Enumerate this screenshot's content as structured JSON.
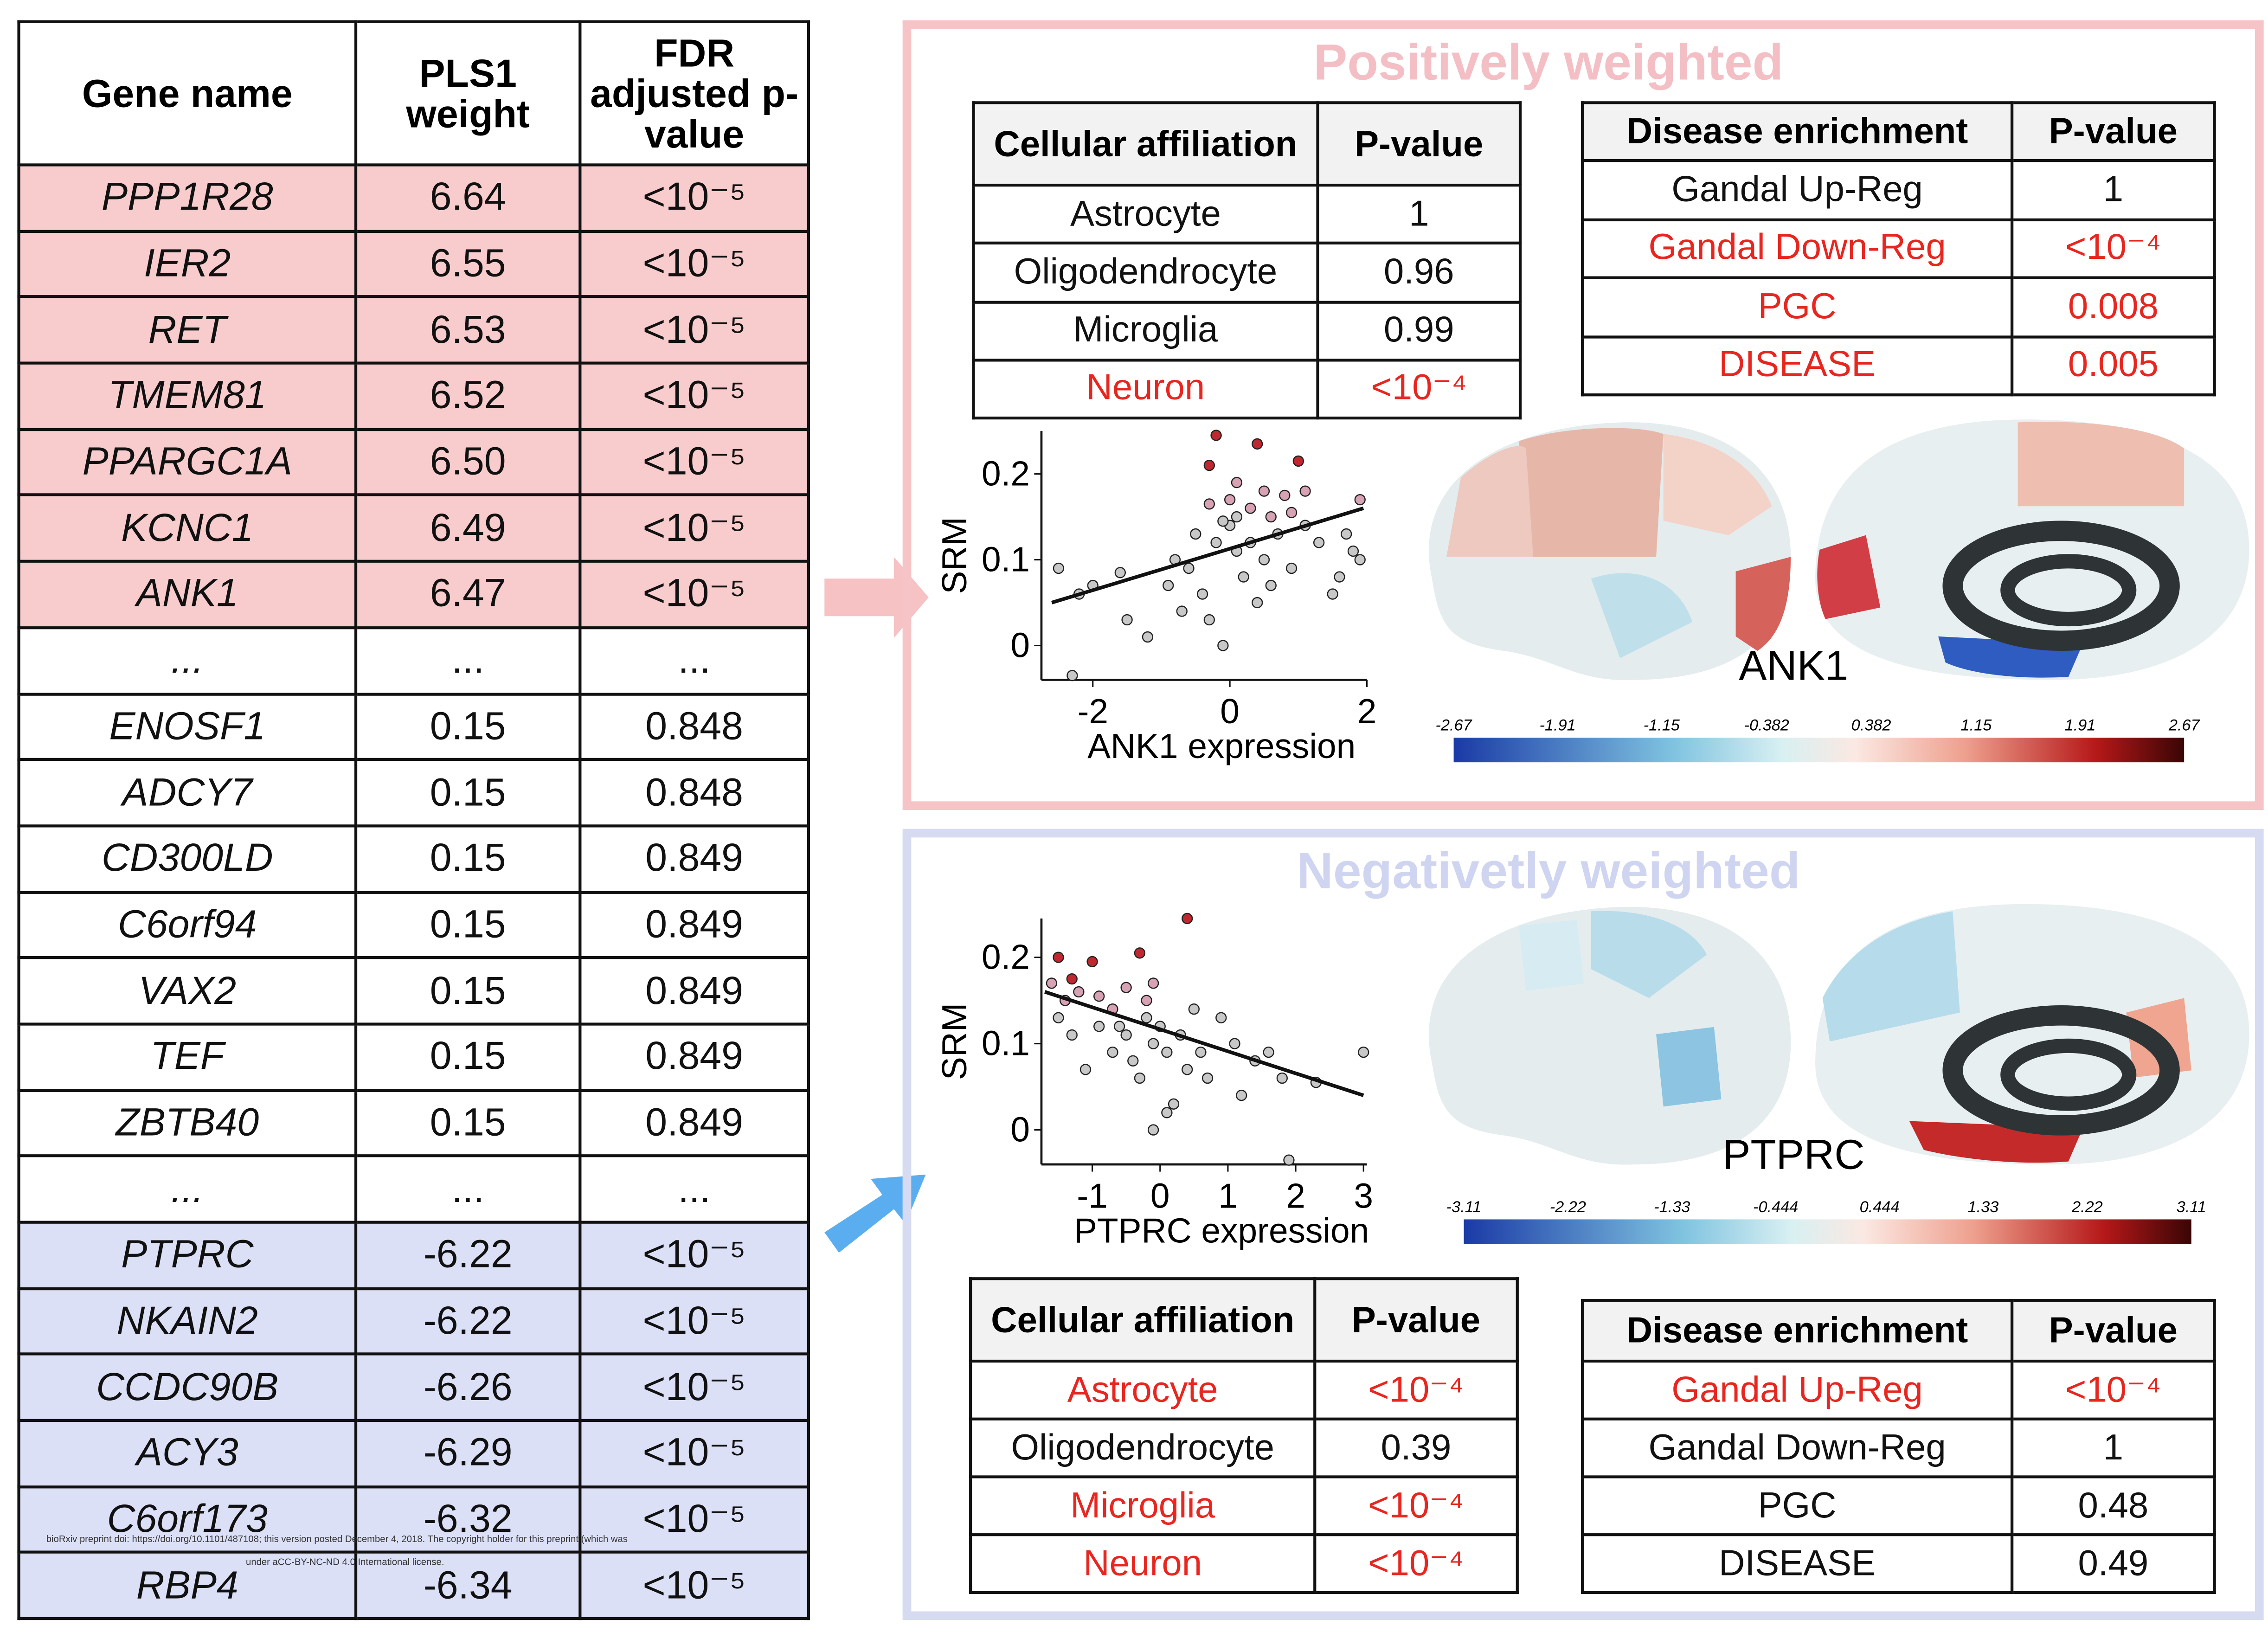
{
  "gene_table": {
    "header": [
      "Gene name",
      "PLS1 weight",
      "FDR adjusted p-value"
    ],
    "rows": [
      {
        "cells": [
          "PPP1R28",
          "6.64",
          "<10⁻⁵"
        ],
        "color": "#f8cccc"
      },
      {
        "cells": [
          "IER2",
          "6.55",
          "<10⁻⁵"
        ],
        "color": "#f8cccc"
      },
      {
        "cells": [
          "RET",
          "6.53",
          "<10⁻⁵"
        ],
        "color": "#f8cccc"
      },
      {
        "cells": [
          "TMEM81",
          "6.52",
          "<10⁻⁵"
        ],
        "color": "#f8cccc"
      },
      {
        "cells": [
          "PPARGC1A",
          "6.50",
          "<10⁻⁵"
        ],
        "color": "#f8cccc"
      },
      {
        "cells": [
          "KCNC1",
          "6.49",
          "<10⁻⁵"
        ],
        "color": "#f8cccc"
      },
      {
        "cells": [
          "ANK1",
          "6.47",
          "<10⁻⁵"
        ],
        "color": "#f8cccc"
      },
      {
        "cells": [
          "...",
          "...",
          "..."
        ],
        "color": "#ffffff"
      },
      {
        "cells": [
          "ENOSF1",
          "0.15",
          "0.848"
        ],
        "color": "#ffffff"
      },
      {
        "cells": [
          "ADCY7",
          "0.15",
          "0.848"
        ],
        "color": "#ffffff"
      },
      {
        "cells": [
          "CD300LD",
          "0.15",
          "0.849"
        ],
        "color": "#ffffff"
      },
      {
        "cells": [
          "C6orf94",
          "0.15",
          "0.849"
        ],
        "color": "#ffffff"
      },
      {
        "cells": [
          "VAX2",
          "0.15",
          "0.849"
        ],
        "color": "#ffffff"
      },
      {
        "cells": [
          "TEF",
          "0.15",
          "0.849"
        ],
        "color": "#ffffff"
      },
      {
        "cells": [
          "ZBTB40",
          "0.15",
          "0.849"
        ],
        "color": "#ffffff"
      },
      {
        "cells": [
          "...",
          "...",
          "..."
        ],
        "color": "#ffffff"
      },
      {
        "cells": [
          "PTPRC",
          "-6.22",
          "<10⁻⁵"
        ],
        "color": "#dbe0f7"
      },
      {
        "cells": [
          "NKAIN2",
          "-6.22",
          "<10⁻⁵"
        ],
        "color": "#dbe0f7"
      },
      {
        "cells": [
          "CCDC90B",
          "-6.26",
          "<10⁻⁵"
        ],
        "color": "#dbe0f7"
      },
      {
        "cells": [
          "ACY3",
          "-6.29",
          "<10⁻⁵"
        ],
        "color": "#dbe0f7"
      },
      {
        "cells": [
          "C6orf173",
          "-6.32",
          "<10⁻⁵"
        ],
        "color": "#dbe0f7"
      },
      {
        "cells": [
          "RBP4",
          "-6.34",
          "<10⁻⁵"
        ],
        "color": "#dbe0f7"
      }
    ]
  },
  "preprint_note": [
    "bioRxiv preprint doi: https://doi.org/10.1101/487108; this version posted December 4, 2018. The copyright holder for this preprint (which was",
    "under aCC-BY-NC-ND 4.0 International license."
  ],
  "highlight_color": "#e8261f",
  "positive": {
    "title": "Positively weighted",
    "title_color": "#f3bfc4",
    "border_color": "#f6c4c6",
    "cell_table": {
      "header": [
        "Cellular affiliation",
        "P-value"
      ],
      "rows": [
        {
          "cells": [
            "Astrocyte",
            "1"
          ],
          "highlight": false
        },
        {
          "cells": [
            "Oligodendrocyte",
            "0.96"
          ],
          "highlight": false
        },
        {
          "cells": [
            "Microglia",
            "0.99"
          ],
          "highlight": false
        },
        {
          "cells": [
            "Neuron",
            "<10⁻⁴"
          ],
          "highlight": true
        }
      ]
    },
    "disease_table": {
      "header": [
        "Disease enrichment",
        "P-value"
      ],
      "rows": [
        {
          "cells": [
            "Gandal Up-Reg",
            "1"
          ],
          "highlight": false
        },
        {
          "cells": [
            "Gandal Down-Reg",
            "<10⁻⁴"
          ],
          "highlight": true
        },
        {
          "cells": [
            "PGC",
            "0.008"
          ],
          "highlight": true
        },
        {
          "cells": [
            "DISEASE",
            "0.005"
          ],
          "highlight": true
        }
      ]
    },
    "chart_data": {
      "type": "scatter",
      "x_label": "ANK1 expression",
      "y_label": "SRM",
      "xlim": [
        -2.75,
        2
      ],
      "ylim": [
        -0.04,
        0.25
      ],
      "xticks": [
        -2,
        0,
        2
      ],
      "yticks": [
        0,
        0.1,
        0.2
      ],
      "groups": [
        {
          "color": "#c8c8c8",
          "x": [
            -2.5,
            -2.2,
            -2.0,
            -1.6,
            -1.2,
            -1.5,
            -0.9,
            -0.8,
            -0.5,
            -0.6,
            -0.4,
            -0.3,
            -0.1,
            -0.2,
            0.0,
            0.1,
            0.2,
            0.3,
            0.4,
            0.5,
            0.7,
            0.9,
            1.1,
            1.3,
            1.5,
            1.6,
            1.7,
            1.8,
            1.9,
            -2.3,
            0.1,
            -0.1,
            0.6,
            -0.7
          ],
          "y": [
            0.09,
            0.06,
            0.07,
            0.085,
            0.01,
            0.03,
            0.07,
            0.1,
            0.13,
            0.09,
            0.06,
            0.03,
            0.0,
            0.12,
            0.14,
            0.11,
            0.08,
            0.12,
            0.05,
            0.1,
            0.13,
            0.09,
            0.14,
            0.12,
            0.06,
            0.08,
            0.13,
            0.11,
            0.1,
            -0.035,
            0.15,
            0.145,
            0.07,
            0.04
          ]
        },
        {
          "color": "#d7a2b4",
          "x": [
            0.1,
            0.5,
            0.8,
            1.1,
            0.0,
            -0.3,
            0.3,
            0.9,
            1.9,
            0.6
          ],
          "y": [
            0.19,
            0.18,
            0.175,
            0.18,
            0.17,
            0.165,
            0.16,
            0.155,
            0.17,
            0.15
          ]
        },
        {
          "color": "#c0282f",
          "x": [
            -0.2,
            0.4,
            -0.3,
            1.0
          ],
          "y": [
            0.245,
            0.235,
            0.21,
            0.215
          ]
        }
      ],
      "fit": {
        "color": "#111111",
        "x": [
          -2.6,
          1.95
        ],
        "y": [
          0.05,
          0.16
        ]
      }
    },
    "colorbar": {
      "label": "ANK1",
      "ticks": [
        -2.67,
        -1.91,
        -1.15,
        -0.382,
        0.382,
        1.15,
        1.91,
        2.67
      ]
    }
  },
  "negative": {
    "title": "Negativetly weighted",
    "title_color": "#cfd5f1",
    "border_color": "#d6dbf2",
    "cell_table": {
      "header": [
        "Cellular affiliation",
        "P-value"
      ],
      "rows": [
        {
          "cells": [
            "Astrocyte",
            "<10⁻⁴"
          ],
          "highlight": true
        },
        {
          "cells": [
            "Oligodendrocyte",
            "0.39"
          ],
          "highlight": false
        },
        {
          "cells": [
            "Microglia",
            "<10⁻⁴"
          ],
          "highlight": true
        },
        {
          "cells": [
            "Neuron",
            "<10⁻⁴"
          ],
          "highlight": true
        }
      ]
    },
    "disease_table": {
      "header": [
        "Disease enrichment",
        "P-value"
      ],
      "rows": [
        {
          "cells": [
            "Gandal Up-Reg",
            "<10⁻⁴"
          ],
          "highlight": true
        },
        {
          "cells": [
            "Gandal Down-Reg",
            "1"
          ],
          "highlight": false
        },
        {
          "cells": [
            "PGC",
            "0.48"
          ],
          "highlight": false
        },
        {
          "cells": [
            "DISEASE",
            "0.49"
          ],
          "highlight": false
        }
      ]
    },
    "chart_data": {
      "type": "scatter",
      "x_label": "PTPRC expression",
      "y_label": "SRM",
      "xlim": [
        -1.75,
        3.05
      ],
      "ylim": [
        -0.04,
        0.245
      ],
      "xticks": [
        -1,
        0,
        1,
        2,
        3
      ],
      "yticks": [
        0,
        0.1,
        0.2
      ],
      "groups": [
        {
          "color": "#c8c8c8",
          "x": [
            -1.5,
            -1.3,
            -1.1,
            -0.9,
            -0.7,
            -0.5,
            -0.4,
            -0.3,
            -0.2,
            -0.1,
            0.0,
            0.1,
            0.2,
            0.3,
            0.4,
            0.5,
            0.6,
            0.7,
            0.9,
            1.1,
            1.2,
            1.4,
            1.6,
            1.8,
            1.9,
            2.3,
            3.0,
            -0.1,
            0.1,
            -0.6
          ],
          "y": [
            0.13,
            0.11,
            0.07,
            0.12,
            0.09,
            0.11,
            0.08,
            0.06,
            0.13,
            0.1,
            0.12,
            0.09,
            0.03,
            0.11,
            0.07,
            0.14,
            0.09,
            0.06,
            0.13,
            0.1,
            0.04,
            0.08,
            0.09,
            0.06,
            -0.035,
            0.055,
            0.09,
            0.0,
            0.02,
            0.12
          ]
        },
        {
          "color": "#d7a2b4",
          "x": [
            -1.6,
            -1.2,
            -0.9,
            -0.5,
            -0.2,
            -0.7,
            -0.1,
            -1.4
          ],
          "y": [
            0.17,
            0.16,
            0.155,
            0.165,
            0.15,
            0.14,
            0.17,
            0.15
          ]
        },
        {
          "color": "#c0282f",
          "x": [
            -1.5,
            -1.0,
            -0.3,
            0.4,
            -1.3
          ],
          "y": [
            0.2,
            0.195,
            0.205,
            0.245,
            0.175
          ]
        }
      ],
      "fit": {
        "color": "#111111",
        "x": [
          -1.7,
          3.0
        ],
        "y": [
          0.16,
          0.04
        ]
      }
    },
    "colorbar": {
      "label": "PTPRC",
      "ticks": [
        -3.11,
        -2.22,
        -1.33,
        -0.444,
        0.444,
        1.33,
        2.22,
        3.11
      ]
    }
  }
}
